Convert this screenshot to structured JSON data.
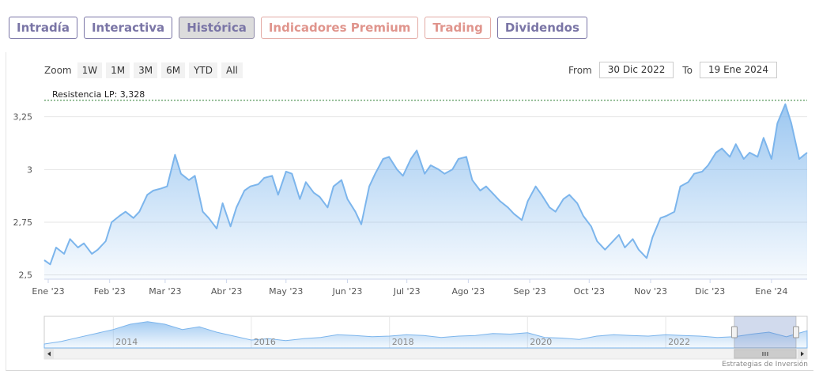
{
  "tabs": [
    {
      "label": "Intradía",
      "style": "normal"
    },
    {
      "label": "Interactiva",
      "style": "normal"
    },
    {
      "label": "Histórica",
      "style": "active"
    },
    {
      "label": "Indicadores Premium",
      "style": "premium"
    },
    {
      "label": "Trading",
      "style": "premium"
    },
    {
      "label": "Dividendos",
      "style": "normal"
    }
  ],
  "toolbar": {
    "zoom_label": "Zoom",
    "zoom_buttons": [
      "1W",
      "1M",
      "3M",
      "6M",
      "YTD",
      "All"
    ],
    "from_label": "From",
    "from_value": "30 Dic 2022",
    "to_label": "To",
    "to_value": "19 Ene 2024"
  },
  "credit": "Estrategias de Inversión",
  "colors": {
    "line": "#7cb5ec",
    "tab_border": "#7a75a6",
    "tab_premium": "#e0958d",
    "resistance": "#2e7d32"
  },
  "chart_data": {
    "type": "area",
    "ylim": [
      2.48,
      3.35
    ],
    "y_ticks": [
      2.5,
      2.75,
      3,
      3.25
    ],
    "y_tick_labels": [
      "2,5",
      "2,75",
      "3",
      "3,25"
    ],
    "x_range": [
      "2022-12-30",
      "2024-01-19"
    ],
    "x_ticks": [
      {
        "date": "2023-01-01",
        "label": "Ene '23"
      },
      {
        "date": "2023-02-01",
        "label": "Feb '23"
      },
      {
        "date": "2023-03-01",
        "label": "Mar '23"
      },
      {
        "date": "2023-04-01",
        "label": "Abr '23"
      },
      {
        "date": "2023-05-01",
        "label": "May '23"
      },
      {
        "date": "2023-06-01",
        "label": "Jun '23"
      },
      {
        "date": "2023-07-01",
        "label": "Jul '23"
      },
      {
        "date": "2023-08-01",
        "label": "Ago '23"
      },
      {
        "date": "2023-09-01",
        "label": "Sep '23"
      },
      {
        "date": "2023-10-01",
        "label": "Oct '23"
      },
      {
        "date": "2023-11-01",
        "label": "Nov '23"
      },
      {
        "date": "2023-12-01",
        "label": "Dic '23"
      },
      {
        "date": "2024-01-01",
        "label": "Ene '24"
      }
    ],
    "annotation": {
      "label": "Resistencia LP: 3,328",
      "value": 3.328
    },
    "series": [
      {
        "x": [
          "2022-12-30",
          "2023-01-02",
          "2023-01-05",
          "2023-01-09",
          "2023-01-12",
          "2023-01-16",
          "2023-01-19",
          "2023-01-23",
          "2023-01-26",
          "2023-01-30",
          "2023-02-02",
          "2023-02-06",
          "2023-02-09",
          "2023-02-13",
          "2023-02-16",
          "2023-02-20",
          "2023-02-23",
          "2023-02-27",
          "2023-03-02",
          "2023-03-06",
          "2023-03-09",
          "2023-03-13",
          "2023-03-16",
          "2023-03-20",
          "2023-03-23",
          "2023-03-27",
          "2023-03-30",
          "2023-04-03",
          "2023-04-06",
          "2023-04-10",
          "2023-04-13",
          "2023-04-17",
          "2023-04-20",
          "2023-04-24",
          "2023-04-27",
          "2023-05-01",
          "2023-05-04",
          "2023-05-08",
          "2023-05-11",
          "2023-05-15",
          "2023-05-18",
          "2023-05-22",
          "2023-05-25",
          "2023-05-29",
          "2023-06-01",
          "2023-06-05",
          "2023-06-08",
          "2023-06-12",
          "2023-06-15",
          "2023-06-19",
          "2023-06-22",
          "2023-06-26",
          "2023-06-29",
          "2023-07-03",
          "2023-07-06",
          "2023-07-10",
          "2023-07-13",
          "2023-07-17",
          "2023-07-20",
          "2023-07-24",
          "2023-07-27",
          "2023-07-31",
          "2023-08-03",
          "2023-08-07",
          "2023-08-10",
          "2023-08-14",
          "2023-08-17",
          "2023-08-21",
          "2023-08-24",
          "2023-08-28",
          "2023-08-31",
          "2023-09-04",
          "2023-09-07",
          "2023-09-11",
          "2023-09-14",
          "2023-09-18",
          "2023-09-21",
          "2023-09-25",
          "2023-09-28",
          "2023-10-02",
          "2023-10-05",
          "2023-10-09",
          "2023-10-12",
          "2023-10-16",
          "2023-10-19",
          "2023-10-23",
          "2023-10-26",
          "2023-10-30",
          "2023-11-02",
          "2023-11-06",
          "2023-11-09",
          "2023-11-13",
          "2023-11-16",
          "2023-11-20",
          "2023-11-23",
          "2023-11-27",
          "2023-11-30",
          "2023-12-04",
          "2023-12-07",
          "2023-12-11",
          "2023-12-14",
          "2023-12-18",
          "2023-12-21",
          "2023-12-25",
          "2023-12-28",
          "2024-01-01",
          "2024-01-04",
          "2024-01-08",
          "2024-01-11",
          "2024-01-15",
          "2024-01-19"
        ],
        "y": [
          2.57,
          2.55,
          2.63,
          2.6,
          2.67,
          2.63,
          2.65,
          2.6,
          2.62,
          2.66,
          2.75,
          2.78,
          2.8,
          2.77,
          2.8,
          2.88,
          2.9,
          2.91,
          2.92,
          3.07,
          2.98,
          2.95,
          2.97,
          2.8,
          2.77,
          2.72,
          2.84,
          2.73,
          2.82,
          2.9,
          2.92,
          2.93,
          2.96,
          2.97,
          2.88,
          2.99,
          2.98,
          2.86,
          2.94,
          2.89,
          2.87,
          2.82,
          2.92,
          2.95,
          2.86,
          2.8,
          2.74,
          2.92,
          2.98,
          3.05,
          3.06,
          3.0,
          2.97,
          3.05,
          3.09,
          2.98,
          3.02,
          3.0,
          2.98,
          3.0,
          3.05,
          3.06,
          2.95,
          2.9,
          2.92,
          2.88,
          2.85,
          2.82,
          2.79,
          2.76,
          2.85,
          2.92,
          2.88,
          2.82,
          2.8,
          2.86,
          2.88,
          2.84,
          2.78,
          2.73,
          2.66,
          2.62,
          2.65,
          2.69,
          2.63,
          2.67,
          2.62,
          2.58,
          2.68,
          2.77,
          2.78,
          2.8,
          2.92,
          2.94,
          2.98,
          2.99,
          3.02,
          3.08,
          3.1,
          3.06,
          3.12,
          3.05,
          3.08,
          3.06,
          3.15,
          3.05,
          3.22,
          3.31,
          3.22,
          3.05,
          3.08
        ]
      }
    ]
  },
  "navigator_data": {
    "x_range": [
      "2013-01-01",
      "2024-01-19"
    ],
    "year_labels": [
      {
        "date": "2014-01-01",
        "label": "2014"
      },
      {
        "date": "2016-01-01",
        "label": "2016"
      },
      {
        "date": "2018-01-01",
        "label": "2018"
      },
      {
        "date": "2020-01-01",
        "label": "2020"
      },
      {
        "date": "2022-01-01",
        "label": "2022"
      }
    ],
    "ylim": [
      1.8,
      4.2
    ],
    "x": [
      "2013-01-01",
      "2013-04-01",
      "2013-07-01",
      "2013-10-01",
      "2014-01-01",
      "2014-04-01",
      "2014-07-01",
      "2014-10-01",
      "2015-01-01",
      "2015-04-01",
      "2015-07-01",
      "2015-10-01",
      "2016-01-01",
      "2016-04-01",
      "2016-07-01",
      "2016-10-01",
      "2017-01-01",
      "2017-04-01",
      "2017-07-01",
      "2017-10-01",
      "2018-01-01",
      "2018-04-01",
      "2018-07-01",
      "2018-10-01",
      "2019-01-01",
      "2019-04-01",
      "2019-07-01",
      "2019-10-01",
      "2020-01-01",
      "2020-04-01",
      "2020-07-01",
      "2020-10-01",
      "2021-01-01",
      "2021-04-01",
      "2021-07-01",
      "2021-10-01",
      "2022-01-01",
      "2022-04-01",
      "2022-07-01",
      "2022-10-01",
      "2023-01-01",
      "2023-04-01",
      "2023-07-01",
      "2023-10-01",
      "2024-01-19"
    ],
    "y": [
      2.1,
      2.3,
      2.6,
      2.9,
      3.2,
      3.6,
      3.8,
      3.6,
      3.2,
      3.4,
      3.0,
      2.7,
      2.4,
      2.5,
      2.35,
      2.5,
      2.6,
      2.8,
      2.75,
      2.65,
      2.7,
      2.8,
      2.75,
      2.6,
      2.7,
      2.75,
      2.9,
      2.85,
      2.95,
      2.6,
      2.55,
      2.45,
      2.7,
      2.8,
      2.75,
      2.7,
      2.8,
      2.75,
      2.7,
      2.6,
      2.65,
      2.85,
      3.0,
      2.65,
      3.1
    ]
  }
}
